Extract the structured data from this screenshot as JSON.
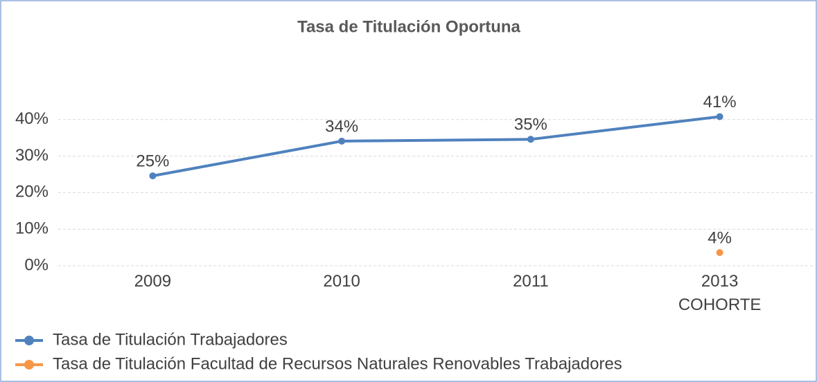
{
  "chart_data": {
    "type": "line",
    "title": "Tasa de Titulación Oportuna",
    "categories": [
      "2009",
      "2010",
      "2011",
      "2013 COHORTE"
    ],
    "series": [
      {
        "name": "Tasa de Titulación Trabajadores",
        "color": "#4f81bd",
        "values": [
          24.6,
          34.1,
          34.6,
          40.8
        ],
        "value_labels": [
          "25%",
          "34%",
          "35%",
          "41%"
        ]
      },
      {
        "name": "Tasa de Titulación Facultad de Recursos Naturales Renovables Trabajadores",
        "color": "#f79646",
        "values": [
          null,
          null,
          null,
          3.6
        ],
        "value_labels": [
          null,
          null,
          null,
          "4%"
        ]
      }
    ],
    "ylim": [
      0,
      50
    ],
    "yticks": [
      {
        "value": 0,
        "label": "0%"
      },
      {
        "value": 10,
        "label": "10%"
      },
      {
        "value": 20,
        "label": "20%"
      },
      {
        "value": 30,
        "label": "30%"
      },
      {
        "value": 40,
        "label": "40%"
      }
    ],
    "grid": true,
    "legend": "bottom"
  }
}
